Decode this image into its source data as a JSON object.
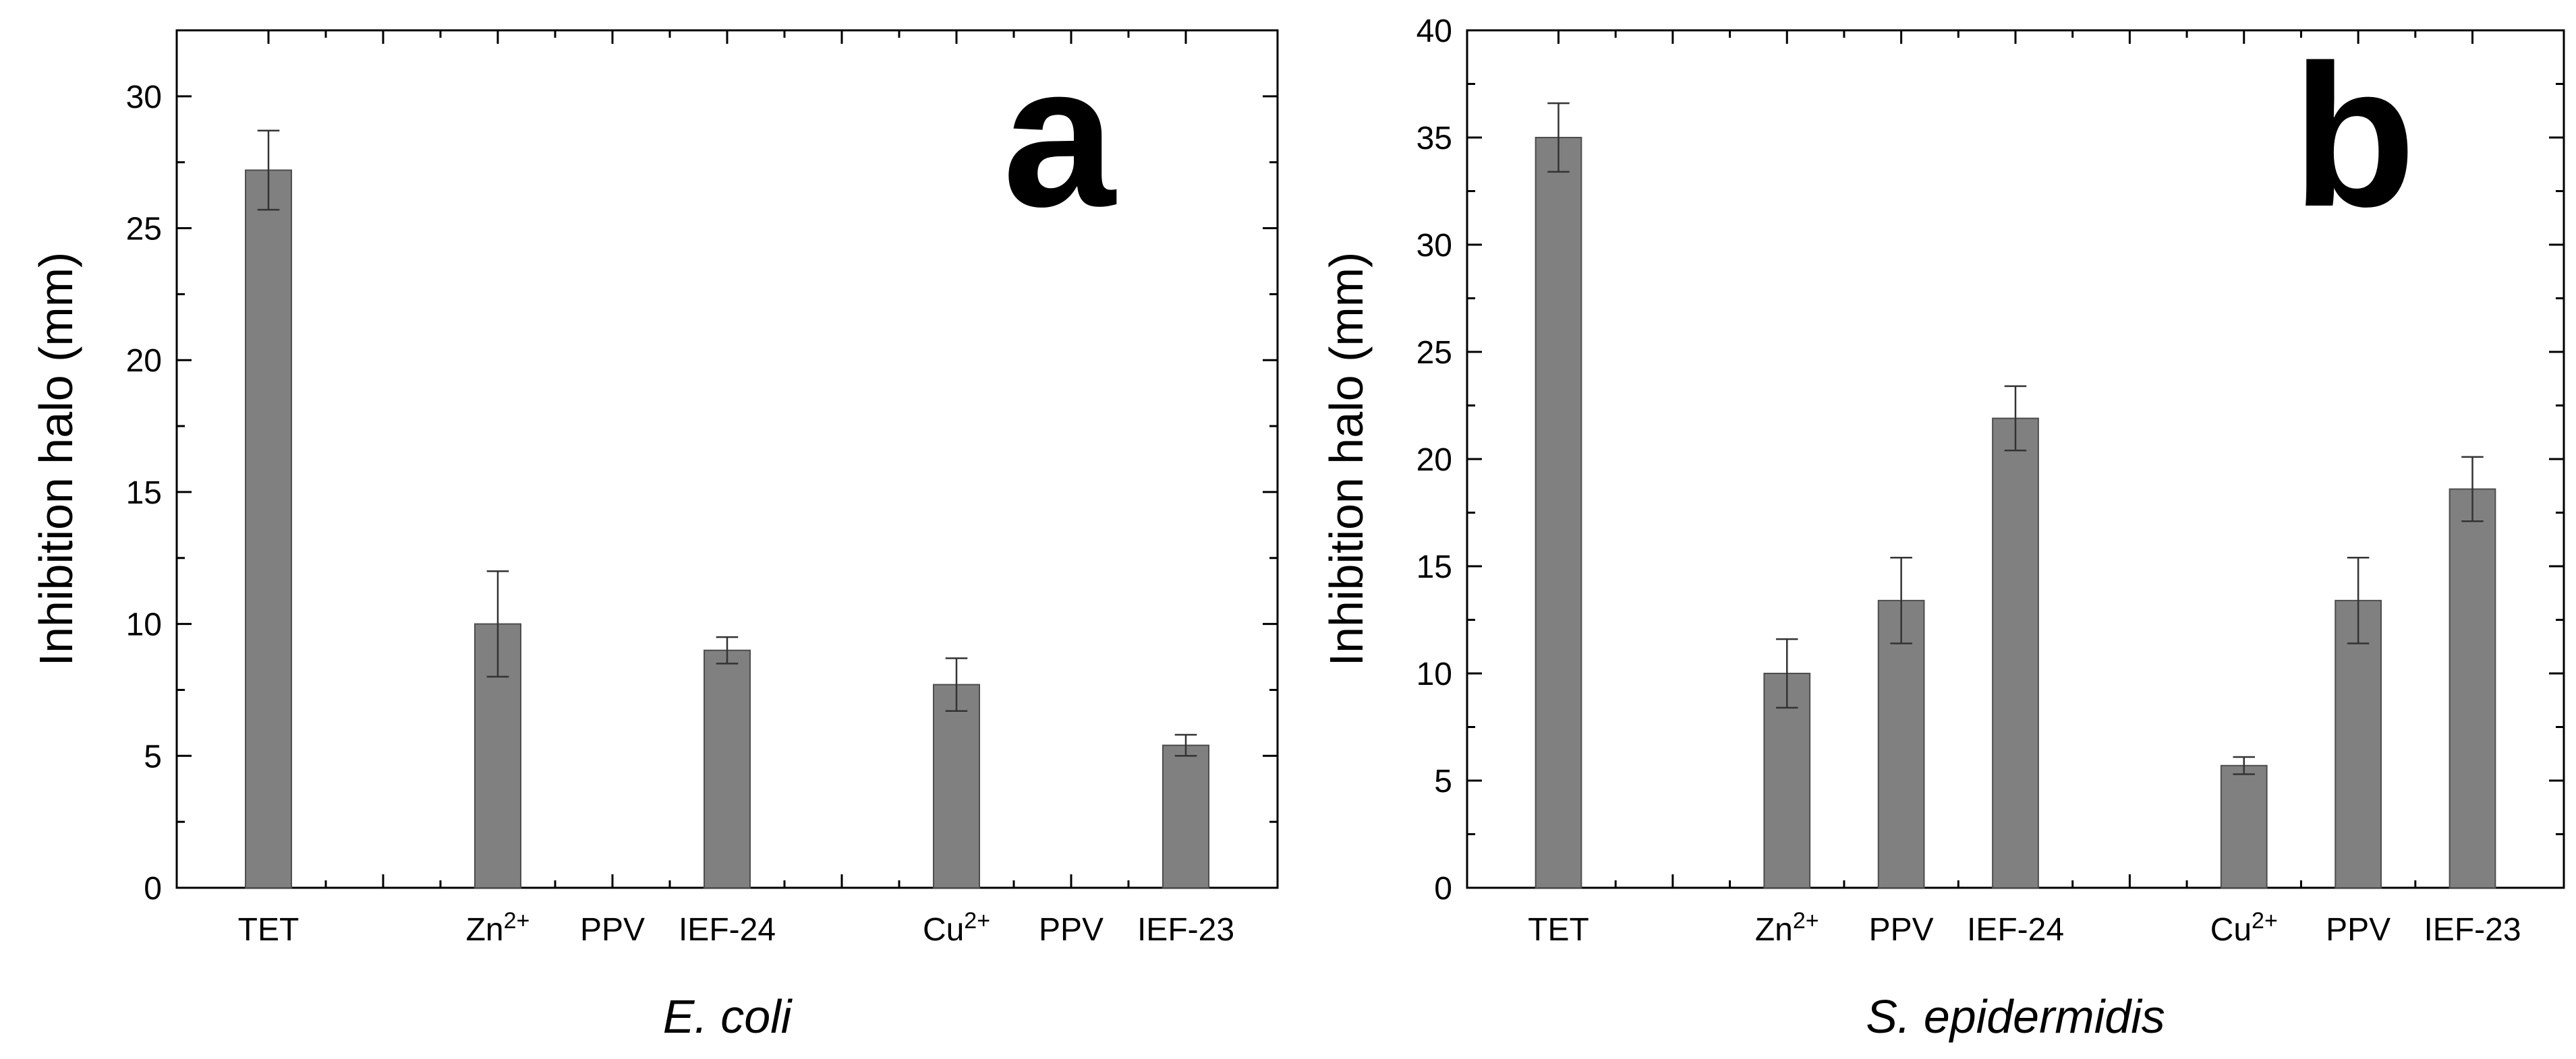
{
  "figure": {
    "bar_color": "#808080",
    "frame_color": "#000000"
  },
  "chart_data": [
    {
      "type": "bar",
      "panel_label": "a",
      "title": "",
      "xlabel": "E. coli",
      "ylabel": "Inhibition halo (mm)",
      "ylim": [
        0,
        32.5
      ],
      "yticks": [
        0,
        5,
        10,
        15,
        20,
        25,
        30
      ],
      "categories": [
        "TET",
        "",
        "Zn2+",
        "PPV",
        "IEF-24",
        "",
        "Cu2+",
        "PPV",
        "IEF-23"
      ],
      "tick_labels": [
        {
          "base": "TET",
          "sup": ""
        },
        {
          "base": "",
          "sup": ""
        },
        {
          "base": "Zn",
          "sup": "2+"
        },
        {
          "base": "PPV",
          "sup": ""
        },
        {
          "base": "IEF-24",
          "sup": ""
        },
        {
          "base": "",
          "sup": ""
        },
        {
          "base": "Cu",
          "sup": "2+"
        },
        {
          "base": "PPV",
          "sup": ""
        },
        {
          "base": "IEF-23",
          "sup": ""
        }
      ],
      "values": [
        27.2,
        null,
        10.0,
        null,
        9.0,
        null,
        7.7,
        null,
        5.4
      ],
      "errors": [
        1.5,
        null,
        2.0,
        null,
        0.5,
        null,
        1.0,
        null,
        0.4
      ]
    },
    {
      "type": "bar",
      "panel_label": "b",
      "title": "",
      "xlabel": "S. epidermidis",
      "ylabel": "Inhibition halo (mm)",
      "ylim": [
        0,
        40
      ],
      "yticks": [
        0,
        5,
        10,
        15,
        20,
        25,
        30,
        35,
        40
      ],
      "categories": [
        "TET",
        "",
        "Zn2+",
        "PPV",
        "IEF-24",
        "",
        "Cu2+",
        "PPV",
        "IEF-23"
      ],
      "tick_labels": [
        {
          "base": "TET",
          "sup": ""
        },
        {
          "base": "",
          "sup": ""
        },
        {
          "base": "Zn",
          "sup": "2+"
        },
        {
          "base": "PPV",
          "sup": ""
        },
        {
          "base": "IEF-24",
          "sup": ""
        },
        {
          "base": "",
          "sup": ""
        },
        {
          "base": "Cu",
          "sup": "2+"
        },
        {
          "base": "PPV",
          "sup": ""
        },
        {
          "base": "IEF-23",
          "sup": ""
        }
      ],
      "values": [
        35.0,
        null,
        10.0,
        13.4,
        21.9,
        null,
        5.7,
        13.4,
        18.6
      ],
      "errors": [
        1.6,
        null,
        1.6,
        2.0,
        1.5,
        null,
        0.4,
        2.0,
        1.5
      ]
    }
  ]
}
